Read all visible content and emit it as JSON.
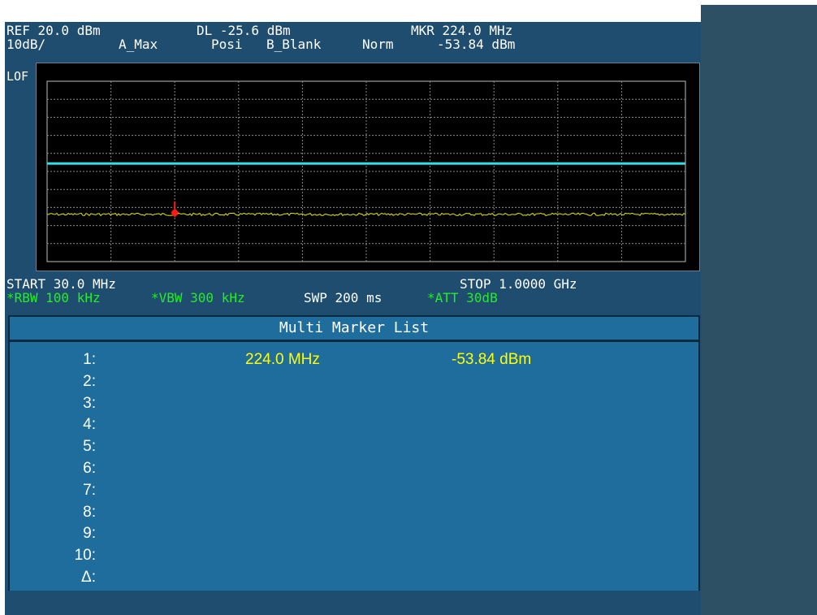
{
  "header": {
    "ref": "REF 20.0 dBm",
    "display_line": "DL -25.6 dBm",
    "marker": "MKR 224.0 MHz",
    "scale": "10dB/",
    "trace_a": "A_Max",
    "detector": "Posi",
    "trace_b": "B_Blank",
    "sweep_mode": "Norm",
    "marker_amp": "-53.84 dBm",
    "lof": "LOF"
  },
  "footer": {
    "start": "START 30.0 MHz",
    "stop": "STOP 1.0000 GHz",
    "rbw": "*RBW 100 kHz",
    "vbw": "*VBW 300 kHz",
    "sweep": "SWP 200 ms",
    "att": "*ATT 30dB"
  },
  "marker_list": {
    "title": "Multi Marker List",
    "rows": [
      {
        "label": "1:",
        "freq": "224.0 MHz",
        "amp": "-53.84 dBm"
      },
      {
        "label": "2:",
        "freq": "",
        "amp": ""
      },
      {
        "label": "3:",
        "freq": "",
        "amp": ""
      },
      {
        "label": "4:",
        "freq": "",
        "amp": ""
      },
      {
        "label": "5:",
        "freq": "",
        "amp": ""
      },
      {
        "label": "6:",
        "freq": "",
        "amp": ""
      },
      {
        "label": "7:",
        "freq": "",
        "amp": ""
      },
      {
        "label": "8:",
        "freq": "",
        "amp": ""
      },
      {
        "label": "9:",
        "freq": "",
        "amp": ""
      },
      {
        "label": "10:",
        "freq": "",
        "amp": ""
      },
      {
        "label": "Δ:",
        "freq": "",
        "amp": ""
      }
    ]
  },
  "trace": {
    "start_mhz": 30,
    "stop_mhz": 1000,
    "ref_dbm": 20,
    "db_per_div": 10,
    "divisions": 10,
    "display_line_dbm": -25.6,
    "noise_floor_dbm": -53.8,
    "marker_freq_mhz": 224,
    "marker_dbm": -53.84
  },
  "colors": {
    "display_line": "#2ee0e6",
    "trace": "#e8e800",
    "marker": "#ff1a1a",
    "graticule": "#8a8a8a"
  }
}
